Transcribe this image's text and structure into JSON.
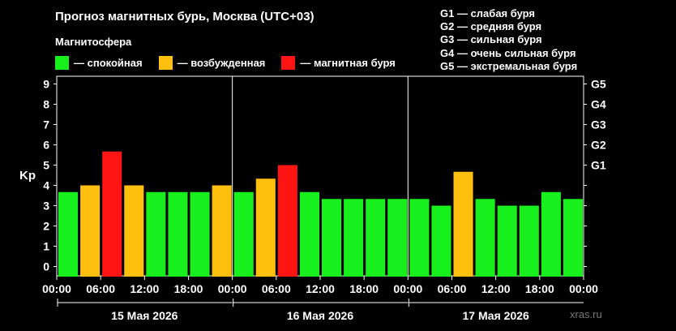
{
  "header": {
    "title": "Прогноз магнитных бурь, Москва (UTC+03)",
    "subtitle": "Магнитосфера"
  },
  "legend": [
    {
      "label": "— спокойная",
      "color": "#17f01c"
    },
    {
      "label": "— возбужденная",
      "color": "#ffbf0f"
    },
    {
      "label": "— магнитная буря",
      "color": "#ff1414"
    }
  ],
  "g_scale": [
    "G1 — слабая буря",
    "G2 — средняя буря",
    "G3 — сильная буря",
    "G4 — очень сильная буря",
    "G5 — экстремальная буря"
  ],
  "watermark": "xras.ru",
  "chart_data": {
    "type": "bar",
    "ylabel": "Kp",
    "ylim": [
      0,
      9
    ],
    "yticks": [
      0,
      1,
      2,
      3,
      4,
      5,
      6,
      7,
      8,
      9
    ],
    "right_axis": [
      {
        "value": 5,
        "label": "G1"
      },
      {
        "value": 6,
        "label": "G2"
      },
      {
        "value": 7,
        "label": "G3"
      },
      {
        "value": 8,
        "label": "G4"
      },
      {
        "value": 9,
        "label": "G5"
      }
    ],
    "time_labels": [
      "00:00",
      "06:00",
      "12:00",
      "18:00",
      "00:00",
      "06:00",
      "12:00",
      "18:00",
      "00:00",
      "06:00",
      "12:00",
      "18:00",
      "00:00"
    ],
    "days": [
      "15 Мая 2026",
      "16 Мая 2026",
      "17 Мая 2026"
    ],
    "bars_per_day": 8,
    "values": [
      3.67,
      4.0,
      5.67,
      4.0,
      3.67,
      3.67,
      3.67,
      4.0,
      3.67,
      4.33,
      5.0,
      3.67,
      3.33,
      3.33,
      3.33,
      3.33,
      3.33,
      3.0,
      4.67,
      3.33,
      3.0,
      3.0,
      3.67,
      3.33
    ],
    "levels": [
      "quiet",
      "active",
      "storm",
      "active",
      "quiet",
      "quiet",
      "quiet",
      "active",
      "quiet",
      "active",
      "storm",
      "quiet",
      "quiet",
      "quiet",
      "quiet",
      "quiet",
      "quiet",
      "quiet",
      "active",
      "quiet",
      "quiet",
      "quiet",
      "quiet",
      "quiet"
    ],
    "colors": {
      "quiet": "#17f01c",
      "active": "#ffbf0f",
      "storm": "#ff1414"
    },
    "grid": false
  }
}
